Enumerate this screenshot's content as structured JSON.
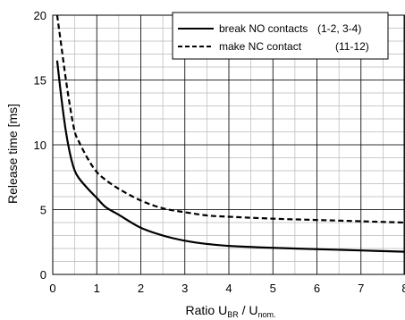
{
  "chart_data": {
    "type": "line",
    "xlabel": {
      "main": "Ratio U",
      "sub1": "BR",
      "sep": " / U",
      "sub2": "nom."
    },
    "ylabel": "Release time [ms]",
    "xlim": [
      0,
      8
    ],
    "ylim": [
      0,
      20
    ],
    "x_ticks": [
      "0",
      "1",
      "2",
      "3",
      "4",
      "5",
      "6",
      "7",
      "8"
    ],
    "y_ticks": [
      "0",
      "5",
      "10",
      "15",
      "20"
    ],
    "grid": {
      "major": true,
      "minor": true,
      "minor_x_step": 0.5,
      "minor_y_step": 1
    },
    "legend_position": "top-right",
    "series": [
      {
        "name": "break NO contacts",
        "note": "(1-2, 3-4)",
        "style": "solid",
        "x": [
          0.1,
          0.2,
          0.3,
          0.4,
          0.5,
          0.6,
          0.8,
          1.0,
          1.2,
          1.5,
          2.0,
          2.5,
          3.0,
          3.5,
          4.0,
          5.0,
          6.0,
          7.0,
          8.0
        ],
        "y": [
          16.5,
          13.5,
          11.0,
          9.2,
          8.0,
          7.4,
          6.6,
          5.9,
          5.2,
          4.6,
          3.6,
          3.0,
          2.6,
          2.35,
          2.2,
          2.05,
          1.95,
          1.85,
          1.75
        ]
      },
      {
        "name": "make NC contact",
        "note": "(11-12)",
        "style": "dashed",
        "x": [
          0.1,
          0.2,
          0.3,
          0.4,
          0.5,
          0.6,
          0.8,
          1.0,
          1.2,
          1.5,
          2.0,
          2.5,
          3.0,
          3.5,
          4.0,
          5.0,
          6.0,
          7.0,
          8.0
        ],
        "y": [
          20.0,
          17.5,
          15.0,
          12.8,
          11.0,
          10.2,
          8.9,
          7.9,
          7.3,
          6.6,
          5.7,
          5.1,
          4.8,
          4.55,
          4.45,
          4.3,
          4.2,
          4.1,
          4.0
        ]
      }
    ]
  }
}
